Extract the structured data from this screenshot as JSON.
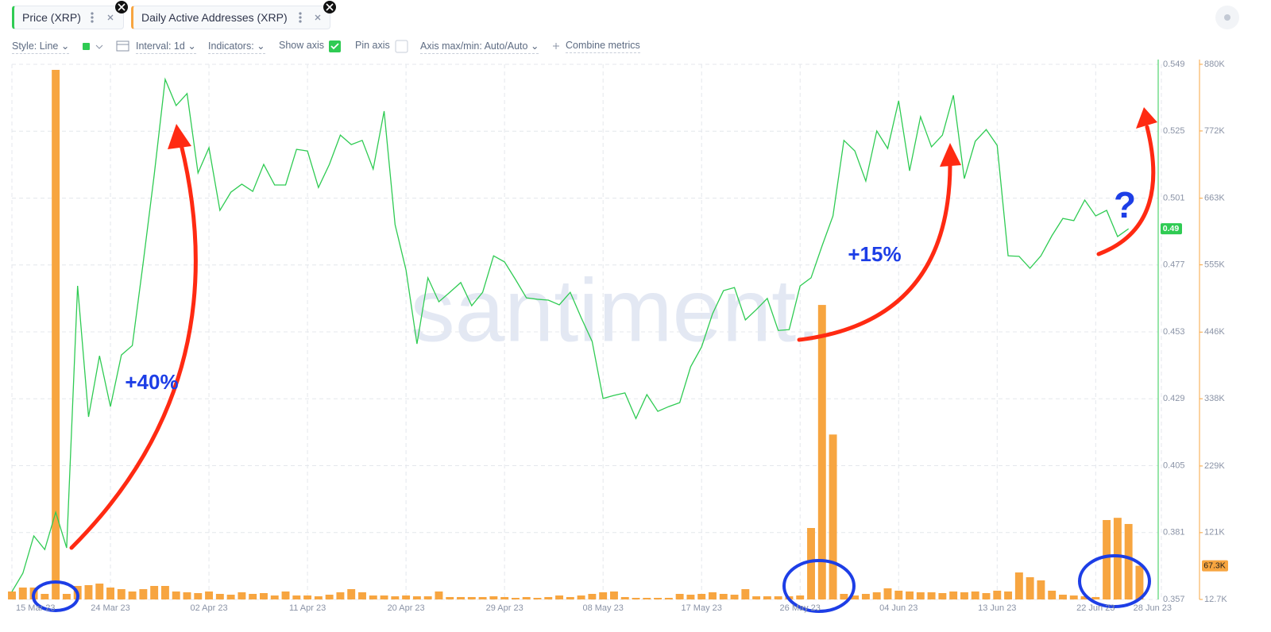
{
  "tabs": [
    {
      "label": "Price (XRP)"
    },
    {
      "label": "Daily Active Addresses (XRP)"
    }
  ],
  "toolbar": {
    "style": "Style: Line",
    "interval": "Interval: 1d",
    "indicators": "Indicators:",
    "show_axis": "Show axis",
    "pin_axis": "Pin axis",
    "axis_minmax": "Axis max/min: Auto/Auto",
    "combine": "Combine metrics"
  },
  "watermark": "santiment.",
  "chart_data": {
    "type": "combo",
    "x": [
      "2023-03-15",
      "2023-03-16",
      "2023-03-17",
      "2023-03-18",
      "2023-03-19",
      "2023-03-20",
      "2023-03-21",
      "2023-03-22",
      "2023-03-23",
      "2023-03-24",
      "2023-03-25",
      "2023-03-26",
      "2023-03-27",
      "2023-03-28",
      "2023-03-29",
      "2023-03-30",
      "2023-03-31",
      "2023-04-01",
      "2023-04-02",
      "2023-04-03",
      "2023-04-04",
      "2023-04-05",
      "2023-04-06",
      "2023-04-07",
      "2023-04-08",
      "2023-04-09",
      "2023-04-10",
      "2023-04-11",
      "2023-04-12",
      "2023-04-13",
      "2023-04-14",
      "2023-04-15",
      "2023-04-16",
      "2023-04-17",
      "2023-04-18",
      "2023-04-19",
      "2023-04-20",
      "2023-04-21",
      "2023-04-22",
      "2023-04-23",
      "2023-04-24",
      "2023-04-25",
      "2023-04-26",
      "2023-04-27",
      "2023-04-28",
      "2023-04-29",
      "2023-04-30",
      "2023-05-01",
      "2023-05-02",
      "2023-05-03",
      "2023-05-04",
      "2023-05-05",
      "2023-05-06",
      "2023-05-07",
      "2023-05-08",
      "2023-05-09",
      "2023-05-10",
      "2023-05-11",
      "2023-05-12",
      "2023-05-13",
      "2023-05-14",
      "2023-05-15",
      "2023-05-16",
      "2023-05-17",
      "2023-05-18",
      "2023-05-19",
      "2023-05-20",
      "2023-05-21",
      "2023-05-22",
      "2023-05-23",
      "2023-05-24",
      "2023-05-25",
      "2023-05-26",
      "2023-05-27",
      "2023-05-28",
      "2023-05-29",
      "2023-05-30",
      "2023-05-31",
      "2023-06-01",
      "2023-06-02",
      "2023-06-03",
      "2023-06-04",
      "2023-06-05",
      "2023-06-06",
      "2023-06-07",
      "2023-06-08",
      "2023-06-09",
      "2023-06-10",
      "2023-06-11",
      "2023-06-12",
      "2023-06-13",
      "2023-06-14",
      "2023-06-15",
      "2023-06-16",
      "2023-06-17",
      "2023-06-18",
      "2023-06-19",
      "2023-06-20",
      "2023-06-21",
      "2023-06-22",
      "2023-06-23",
      "2023-06-24",
      "2023-06-25",
      "2023-06-26"
    ],
    "xlim": [
      "2023-03-15",
      "2023-06-28"
    ],
    "xticks": [
      {
        "value": "2023-03-15",
        "label": "15 Mar 23"
      },
      {
        "value": "2023-03-24",
        "label": "24 Mar 23"
      },
      {
        "value": "2023-04-02",
        "label": "02 Apr 23"
      },
      {
        "value": "2023-04-11",
        "label": "11 Apr 23"
      },
      {
        "value": "2023-04-20",
        "label": "20 Apr 23"
      },
      {
        "value": "2023-04-29",
        "label": "29 Apr 23"
      },
      {
        "value": "2023-05-08",
        "label": "08 May 23"
      },
      {
        "value": "2023-05-17",
        "label": "17 May 23"
      },
      {
        "value": "2023-05-26",
        "label": "26 May 23"
      },
      {
        "value": "2023-06-04",
        "label": "04 Jun 23"
      },
      {
        "value": "2023-06-13",
        "label": "13 Jun 23"
      },
      {
        "value": "2023-06-22",
        "label": "22 Jun 23"
      },
      {
        "value": "2023-06-28",
        "label": "28 Jun 23"
      }
    ],
    "ylim": [
      0.357,
      0.549
    ],
    "yticks": [
      0.357,
      0.381,
      0.405,
      0.429,
      0.453,
      0.477,
      0.501,
      0.525,
      0.549
    ],
    "y2lim": [
      12700,
      880000
    ],
    "y2ticks": [
      {
        "value": 12700,
        "label": "12.7K"
      },
      {
        "value": 121000,
        "label": "121K"
      },
      {
        "value": 229000,
        "label": "229K"
      },
      {
        "value": 338000,
        "label": "338K"
      },
      {
        "value": 446000,
        "label": "446K"
      },
      {
        "value": 555000,
        "label": "555K"
      },
      {
        "value": 663000,
        "label": "663K"
      },
      {
        "value": 772000,
        "label": "772K"
      },
      {
        "value": 880000,
        "label": "880K"
      }
    ],
    "grid": true,
    "series": [
      {
        "name": "Price (XRP)",
        "type": "line",
        "color": "#2fcb53",
        "current_value": 0.49,
        "values": [
          0.3598,
          0.3664,
          0.3798,
          0.3749,
          0.3883,
          0.3755,
          0.4695,
          0.4225,
          0.4444,
          0.4262,
          0.4447,
          0.4481,
          0.4781,
          0.5094,
          0.5436,
          0.5342,
          0.5385,
          0.51,
          0.5191,
          0.4966,
          0.5031,
          0.506,
          0.5034,
          0.5131,
          0.5057,
          0.5057,
          0.5185,
          0.5179,
          0.5048,
          0.5131,
          0.5236,
          0.5202,
          0.5217,
          0.5114,
          0.5322,
          0.4915,
          0.4752,
          0.4487,
          0.4724,
          0.4638,
          0.4672,
          0.4707,
          0.4624,
          0.4672,
          0.4803,
          0.4781,
          0.4718,
          0.4652,
          0.4647,
          0.4644,
          0.4627,
          0.4672,
          0.4581,
          0.4496,
          0.4291,
          0.4302,
          0.4311,
          0.4219,
          0.4305,
          0.4245,
          0.4262,
          0.4276,
          0.4405,
          0.4476,
          0.4595,
          0.4678,
          0.4689,
          0.4573,
          0.461,
          0.465,
          0.4535,
          0.4538,
          0.4695,
          0.4724,
          0.4838,
          0.4946,
          0.5217,
          0.5179,
          0.5071,
          0.5251,
          0.5188,
          0.5359,
          0.5108,
          0.5302,
          0.5194,
          0.5236,
          0.5379,
          0.508,
          0.5214,
          0.5256,
          0.5199,
          0.4803,
          0.4801,
          0.4758,
          0.4803,
          0.4875,
          0.4937,
          0.4929,
          0.5003,
          0.4946,
          0.4966,
          0.4872,
          0.49,
          null
        ]
      },
      {
        "name": "Daily Active Addresses (XRP)",
        "type": "bar",
        "axis": "y2",
        "color": "#f7a540",
        "current_value": 67300,
        "current_label": "67.3K",
        "values": [
          25600,
          32000,
          32000,
          21700,
          871000,
          21700,
          34600,
          35900,
          38400,
          32000,
          29400,
          25600,
          29400,
          34600,
          34600,
          25600,
          24300,
          23000,
          25600,
          21700,
          20400,
          24300,
          21700,
          23000,
          19100,
          25600,
          19100,
          19100,
          17800,
          20400,
          24300,
          29400,
          24300,
          19100,
          19100,
          17800,
          19100,
          17800,
          17800,
          25600,
          16600,
          16600,
          16600,
          16600,
          17800,
          16600,
          15300,
          16600,
          15300,
          16600,
          19100,
          16600,
          19100,
          21700,
          24300,
          25600,
          16600,
          15300,
          15300,
          15300,
          15300,
          21700,
          20400,
          21700,
          24300,
          21700,
          20400,
          29400,
          17800,
          17800,
          17800,
          17800,
          19100,
          128500,
          490000,
          280000,
          21700,
          19100,
          21700,
          24300,
          30700,
          26900,
          25600,
          24300,
          24300,
          23000,
          25600,
          24300,
          25600,
          23000,
          26900,
          25600,
          56500,
          48700,
          43600,
          26900,
          20400,
          19100,
          17800,
          16600,
          141400,
          145000,
          135000,
          67300
        ]
      }
    ],
    "annotations": [
      {
        "text": "+40%"
      },
      {
        "text": "+15%"
      },
      {
        "text": "?"
      }
    ]
  }
}
